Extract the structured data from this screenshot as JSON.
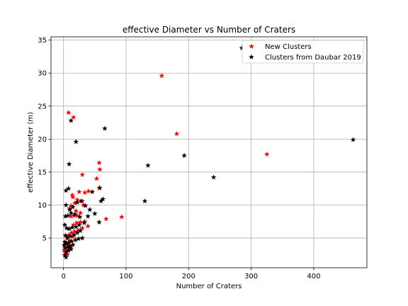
{
  "chart_data": {
    "type": "scatter",
    "title": "effective Diameter vs Number of Craters",
    "xlabel": "Number of Craters",
    "ylabel": "effective Diameter (m)",
    "xlim": [
      -20,
      485
    ],
    "ylim": [
      0.5,
      35.5
    ],
    "xticks": [
      0,
      100,
      200,
      300,
      400
    ],
    "yticks": [
      5,
      10,
      15,
      20,
      25,
      30,
      35
    ],
    "grid": true,
    "legend": "top-right",
    "series": [
      {
        "name": "New Clusters",
        "color": "#ff0000",
        "marker": "star",
        "points": [
          [
            8,
            24.0
          ],
          [
            16,
            23.3
          ],
          [
            157,
            29.6
          ],
          [
            181,
            20.8
          ],
          [
            325,
            17.7
          ],
          [
            57,
            16.4
          ],
          [
            58,
            15.4
          ],
          [
            30,
            14.6
          ],
          [
            53,
            14.0
          ],
          [
            57,
            12.6
          ],
          [
            40,
            12.1
          ],
          [
            34,
            11.9
          ],
          [
            25,
            12.0
          ],
          [
            14,
            11.5
          ],
          [
            15,
            11.2
          ],
          [
            22,
            10.8
          ],
          [
            30,
            10.6
          ],
          [
            32,
            10.0
          ],
          [
            18,
            10.3
          ],
          [
            12,
            9.9
          ],
          [
            10,
            9.5
          ],
          [
            20,
            9.1
          ],
          [
            27,
            8.8
          ],
          [
            22,
            8.4
          ],
          [
            17,
            8.4
          ],
          [
            12,
            8.3
          ],
          [
            93,
            8.2
          ],
          [
            68,
            7.9
          ],
          [
            34,
            7.5
          ],
          [
            27,
            7.4
          ],
          [
            21,
            7.3
          ],
          [
            16,
            7.0
          ],
          [
            39,
            6.8
          ],
          [
            30,
            6.5
          ],
          [
            24,
            6.2
          ],
          [
            18,
            6.0
          ],
          [
            13,
            5.8
          ],
          [
            9,
            5.5
          ],
          [
            15,
            5.2
          ],
          [
            6,
            4.9
          ],
          [
            10,
            4.6
          ],
          [
            4,
            4.3
          ],
          [
            8,
            3.9
          ],
          [
            12,
            3.6
          ],
          [
            2,
            3.3
          ],
          [
            5,
            3.0
          ],
          [
            3,
            2.8
          ],
          [
            6,
            2.5
          ],
          [
            1,
            3.1
          ]
        ]
      },
      {
        "name": "Clusters from Daubar 2019",
        "color": "#000000",
        "marker": "star",
        "points": [
          [
            285,
            33.8
          ],
          [
            12,
            22.8
          ],
          [
            66,
            21.6
          ],
          [
            20,
            19.6
          ],
          [
            463,
            19.9
          ],
          [
            193,
            17.5
          ],
          [
            135,
            16.0
          ],
          [
            9,
            16.2
          ],
          [
            240,
            14.2
          ],
          [
            130,
            10.6
          ],
          [
            8,
            12.5
          ],
          [
            4,
            12.2
          ],
          [
            46,
            12.0
          ],
          [
            58,
            12.6
          ],
          [
            63,
            10.9
          ],
          [
            60,
            10.6
          ],
          [
            22,
            10.4
          ],
          [
            28,
            10.6
          ],
          [
            35,
            9.9
          ],
          [
            42,
            9.3
          ],
          [
            50,
            8.7
          ],
          [
            39,
            8.3
          ],
          [
            26,
            8.2
          ],
          [
            18,
            8.6
          ],
          [
            12,
            8.8
          ],
          [
            7,
            8.4
          ],
          [
            3,
            8.3
          ],
          [
            10,
            9.3
          ],
          [
            15,
            9.7
          ],
          [
            4,
            10.0
          ],
          [
            57,
            7.4
          ],
          [
            33,
            7.3
          ],
          [
            25,
            7.0
          ],
          [
            20,
            6.7
          ],
          [
            14,
            6.6
          ],
          [
            9,
            6.4
          ],
          [
            5,
            6.5
          ],
          [
            2,
            7.0
          ],
          [
            27,
            6.1
          ],
          [
            22,
            5.8
          ],
          [
            17,
            5.5
          ],
          [
            11,
            5.3
          ],
          [
            6,
            5.1
          ],
          [
            3,
            5.4
          ],
          [
            30,
            5.0
          ],
          [
            24,
            4.9
          ],
          [
            19,
            4.7
          ],
          [
            13,
            4.5
          ],
          [
            8,
            4.3
          ],
          [
            4,
            4.1
          ],
          [
            2,
            4.4
          ],
          [
            15,
            4.0
          ],
          [
            10,
            3.8
          ],
          [
            6,
            3.6
          ],
          [
            3,
            3.5
          ],
          [
            12,
            3.3
          ],
          [
            8,
            3.1
          ],
          [
            5,
            2.9
          ],
          [
            2,
            2.4
          ],
          [
            4,
            2.1
          ],
          [
            9,
            3.5
          ],
          [
            1,
            3.9
          ]
        ]
      }
    ]
  }
}
